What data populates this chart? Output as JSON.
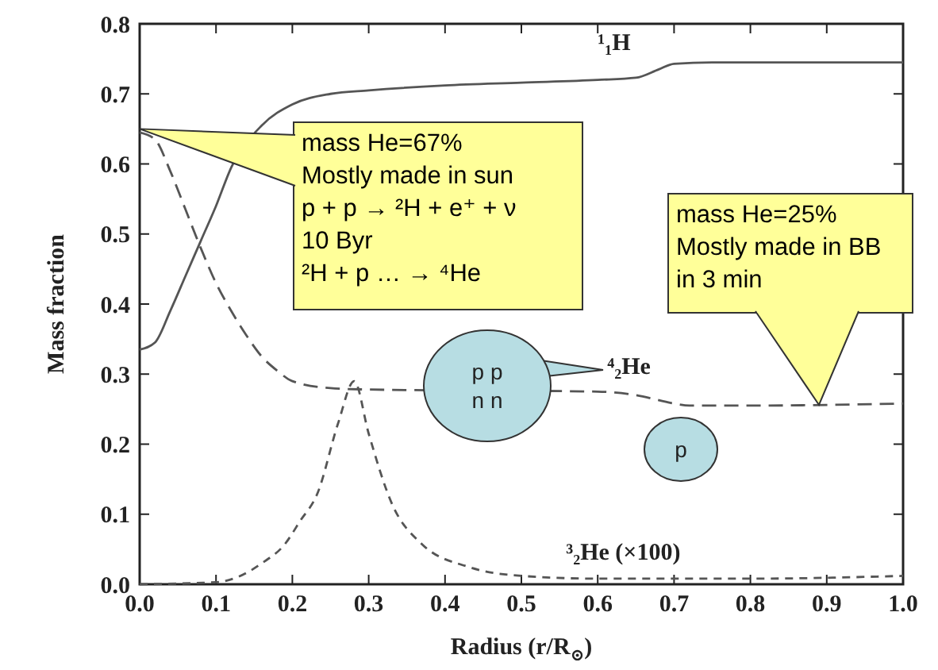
{
  "chart_data": {
    "type": "line",
    "xlabel": "Radius (r/R$_{⊙}$)",
    "ylabel": "Mass fraction",
    "xlim": [
      0,
      1
    ],
    "ylim": [
      0,
      0.8
    ],
    "xticks": [
      {
        "value": 0,
        "label": "0.0"
      },
      0.1,
      0.2,
      0.3,
      0.4,
      0.5,
      0.6,
      0.7,
      0.8,
      0.9,
      {
        "value": 1,
        "label": "1.0"
      }
    ],
    "yticks": [
      {
        "value": 0,
        "label": "0.0"
      },
      0.1,
      0.2,
      0.3,
      0.4,
      0.5,
      0.6,
      0.7,
      0.8
    ],
    "grid": false,
    "legend": false,
    "marker": "none",
    "series": [
      {
        "name": "¹₁H",
        "color": "#555555",
        "line_style": "solid",
        "x": [
          0,
          0.02,
          0.04,
          0.06,
          0.08,
          0.1,
          0.12,
          0.16,
          0.2,
          0.25,
          0.3,
          0.4,
          0.5,
          0.6,
          0.65,
          0.68,
          0.7,
          0.75,
          1.0
        ],
        "values": [
          0.335,
          0.345,
          0.39,
          0.44,
          0.49,
          0.54,
          0.595,
          0.655,
          0.685,
          0.7,
          0.705,
          0.712,
          0.716,
          0.72,
          0.723,
          0.735,
          0.743,
          0.745,
          0.745
        ]
      },
      {
        "name": "⁴₂He",
        "color": "#555555",
        "line_style": "dashed",
        "x": [
          0,
          0.02,
          0.04,
          0.06,
          0.08,
          0.1,
          0.12,
          0.14,
          0.16,
          0.18,
          0.2,
          0.25,
          0.3,
          0.6,
          0.65,
          0.7,
          0.72,
          0.8,
          0.9,
          1.0
        ],
        "values": [
          0.645,
          0.635,
          0.59,
          0.535,
          0.48,
          0.43,
          0.39,
          0.355,
          0.325,
          0.305,
          0.29,
          0.28,
          0.278,
          0.275,
          0.27,
          0.258,
          0.255,
          0.255,
          0.256,
          0.258
        ]
      },
      {
        "name": "³₂He (×100)",
        "color": "#555555",
        "line_style": "dotted",
        "x": [
          0,
          0.1,
          0.13,
          0.16,
          0.19,
          0.21,
          0.233,
          0.26,
          0.281,
          0.3,
          0.33,
          0.37,
          0.43,
          0.5,
          0.6,
          0.8,
          1.0
        ],
        "values": [
          0,
          0.003,
          0.011,
          0.03,
          0.057,
          0.09,
          0.13,
          0.23,
          0.29,
          0.215,
          0.116,
          0.057,
          0.025,
          0.012,
          0.008,
          0.008,
          0.012
        ]
      }
    ],
    "annotations": [
      {
        "text": "mass He=67%\nMostly made in sun\np + p → ²H + e⁺ + ν\n10 Byr\n²H + p … → ⁴He",
        "x": 0,
        "y": 0.65
      },
      "mass He=25%\nMostly made in BB\nin 3 min",
      "p p\nn n",
      "p"
    ]
  }
}
